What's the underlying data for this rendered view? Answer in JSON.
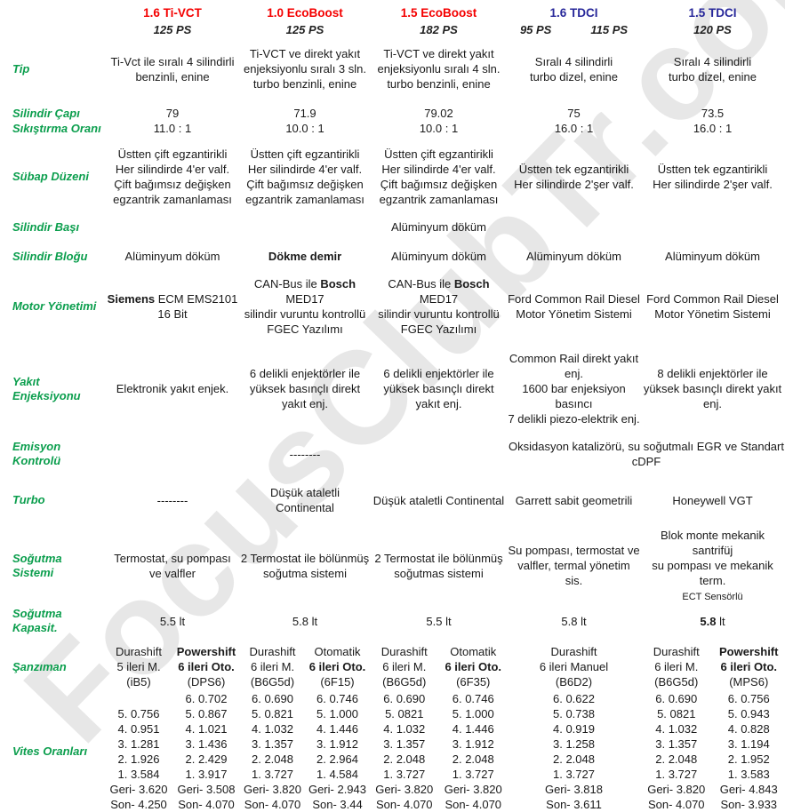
{
  "watermark": "FocusClubTr.com",
  "colors": {
    "petrol_red": "#f40000",
    "diesel_blue": "#28289a",
    "label_green": "#0b9e4d",
    "watermark_gray": "#d9d9d9"
  },
  "engines": [
    {
      "name": "1.6 Ti-VCT",
      "type": "petrol",
      "ps": [
        "125 PS"
      ]
    },
    {
      "name": "1.0 EcoBoost",
      "type": "petrol",
      "ps": [
        "125 PS"
      ]
    },
    {
      "name": "1.5 EcoBoost",
      "type": "petrol",
      "ps": [
        "182 PS"
      ]
    },
    {
      "name": "1.6 TDCI",
      "type": "diesel",
      "ps": [
        "95 PS",
        "115 PS"
      ]
    },
    {
      "name": "1.5 TDCI",
      "type": "diesel",
      "ps": [
        "120 PS"
      ]
    }
  ],
  "rows": [
    {
      "id": "tip",
      "label": "Tip",
      "cells": [
        {
          "c": 0,
          "lines": [
            "Ti-Vct ile sıralı 4 silindirli",
            "benzinli, enine"
          ]
        },
        {
          "c": 1,
          "lines": [
            "Ti-VCT ve direkt yakıt",
            "enjeksiyonlu sıralı 3 sln.",
            "turbo benzinli, enine"
          ]
        },
        {
          "c": 2,
          "lines": [
            "Ti-VCT ve direkt yakıt",
            "enjeksiyonlu sıralı 4 sln.",
            "turbo benzinli, enine"
          ]
        },
        {
          "c": 3,
          "lines": [
            "Sıralı 4 silindirli",
            "turbo dizel, enine"
          ]
        },
        {
          "c": 4,
          "lines": [
            "Sıralı 4 silindirli",
            "turbo dizel, enine"
          ]
        }
      ]
    },
    {
      "id": "bore",
      "label": "Silindir Çapı",
      "cells": [
        {
          "c": 0,
          "lines": [
            "79"
          ]
        },
        {
          "c": 1,
          "lines": [
            "71.9"
          ]
        },
        {
          "c": 2,
          "lines": [
            "79.02"
          ]
        },
        {
          "c": 3,
          "lines": [
            "75"
          ]
        },
        {
          "c": 4,
          "lines": [
            "73.5"
          ]
        }
      ]
    },
    {
      "id": "compression",
      "label": "Sıkıştırma Oranı",
      "cells": [
        {
          "c": 0,
          "lines": [
            "11.0 : 1"
          ]
        },
        {
          "c": 1,
          "lines": [
            "10.0 : 1"
          ]
        },
        {
          "c": 2,
          "lines": [
            "10.0 : 1"
          ]
        },
        {
          "c": 3,
          "lines": [
            "16.0 : 1"
          ]
        },
        {
          "c": 4,
          "lines": [
            "16.0 : 1"
          ]
        }
      ]
    },
    {
      "id": "valvetrain",
      "label": "Sübap Düzeni",
      "cells": [
        {
          "c": 0,
          "lines": [
            "Üstten çift egzantirikli",
            "Her silindirde 4'er valf.",
            "Çift bağımsız değişken",
            "egzantrik zamanlaması"
          ]
        },
        {
          "c": 1,
          "lines": [
            "Üstten çift egzantirikli",
            "Her silindirde 4'er valf.",
            "Çift bağımsız değişken",
            "egzantrik zamanlaması"
          ]
        },
        {
          "c": 2,
          "lines": [
            "Üstten çift egzantirikli",
            "Her silindirde 4'er valf.",
            "Çift bağımsız değişken",
            "egzantrik zamanlaması"
          ]
        },
        {
          "c": 3,
          "lines": [
            "Üstten tek egzantirikli",
            "Her silindirde 2'şer valf."
          ]
        },
        {
          "c": 4,
          "lines": [
            "Üstten tek egzantirikli",
            "Her silindirde 2'şer valf."
          ]
        }
      ]
    },
    {
      "id": "head",
      "label": "Silindir Başı",
      "cells": [
        {
          "c": 2,
          "lines": [
            "Alüminyum döküm"
          ]
        }
      ]
    },
    {
      "id": "block",
      "label": "Silindir Bloğu",
      "cells": [
        {
          "c": 0,
          "lines": [
            "Alüminyum döküm"
          ]
        },
        {
          "c": 1,
          "lines": [
            "**Dökme demir**"
          ]
        },
        {
          "c": 2,
          "lines": [
            "Alüminyum döküm"
          ]
        },
        {
          "c": 3,
          "lines": [
            "Alüminyum döküm"
          ]
        },
        {
          "c": 4,
          "lines": [
            "Alüminyum döküm"
          ]
        }
      ]
    },
    {
      "id": "ecu",
      "label": "Motor Yönetimi",
      "cells": [
        {
          "c": 0,
          "lines": [
            "**Siemens** ECM EMS2101",
            "16 Bit"
          ]
        },
        {
          "c": 1,
          "lines": [
            "CAN-Bus ile **Bosch** MED17",
            "silindir vuruntu kontrollü",
            "FGEC Yazılımı"
          ]
        },
        {
          "c": 2,
          "lines": [
            "CAN-Bus ile **Bosch** MED17",
            "silindir vuruntu kontrollü",
            "FGEC Yazılımı"
          ]
        },
        {
          "c": 3,
          "lines": [
            "Ford Common Rail Diesel",
            "Motor Yönetim Sistemi"
          ]
        },
        {
          "c": 4,
          "lines": [
            "Ford Common Rail Diesel",
            "Motor Yönetim Sistemi"
          ]
        }
      ]
    },
    {
      "id": "injection",
      "label": "Yakıt Enjeksiyonu",
      "cells": [
        {
          "c": 0,
          "lines": [
            "Elektronik yakıt enjek."
          ]
        },
        {
          "c": 1,
          "lines": [
            "6 delikli enjektörler ile",
            "yüksek basınçlı direkt yakıt enj."
          ]
        },
        {
          "c": 2,
          "lines": [
            "6 delikli enjektörler ile",
            "yüksek basınçlı direkt yakıt enj."
          ]
        },
        {
          "c": 3,
          "lines": [
            "Common Rail direkt yakıt enj.",
            "1600 bar enjeksiyon basıncı",
            "7 delikli piezo-elektrik enj."
          ]
        },
        {
          "c": 4,
          "lines": [
            "8 delikli enjektörler ile",
            "yüksek basınçlı direkt yakıt enj."
          ]
        }
      ]
    },
    {
      "id": "emission",
      "label": "Emisyon Kontrolü",
      "cells": [
        {
          "c": 1,
          "lines": [
            "--------"
          ]
        },
        {
          "c": 3,
          "span": 2,
          "lines": [
            "Oksidasyon katalizörü, su soğutmalı EGR ve Standart cDPF"
          ]
        }
      ]
    },
    {
      "id": "turbo",
      "label": "Turbo",
      "cells": [
        {
          "c": 0,
          "lines": [
            "--------"
          ]
        },
        {
          "c": 1,
          "lines": [
            "Düşük ataletli Continental"
          ]
        },
        {
          "c": 2,
          "lines": [
            "Düşük ataletli Continental"
          ]
        },
        {
          "c": 3,
          "lines": [
            "Garrett sabit geometrili"
          ]
        },
        {
          "c": 4,
          "lines": [
            "Honeywell VGT"
          ]
        }
      ]
    },
    {
      "id": "cooling",
      "label": "Soğutma Sistemi",
      "cells": [
        {
          "c": 0,
          "lines": [
            "Termostat, su pompası",
            "ve valfler"
          ]
        },
        {
          "c": 1,
          "lines": [
            "2 Termostat ile bölünmüş",
            "soğutma sistemi"
          ]
        },
        {
          "c": 2,
          "lines": [
            "2 Termostat ile bölünmüş",
            "soğutmas sistemi"
          ]
        },
        {
          "c": 3,
          "lines": [
            "Su pompası, termostat ve",
            "valfler, termal yönetim sis."
          ]
        },
        {
          "c": 4,
          "lines": [
            "Blok monte mekanik santrifüj",
            "su pompası ve mekanik term.",
            {
              "t": "ECT Sensörlü",
              "small": true
            }
          ]
        }
      ]
    },
    {
      "id": "capacity",
      "label": "Soğutma Kapasit.",
      "cells": [
        {
          "c": 0,
          "lines": [
            "5.5 lt"
          ]
        },
        {
          "c": 1,
          "lines": [
            "5.8 lt"
          ]
        },
        {
          "c": 2,
          "lines": [
            "5.5 lt"
          ]
        },
        {
          "c": 3,
          "lines": [
            "5.8 lt"
          ]
        },
        {
          "c": 4,
          "lines": [
            "**5.8** lt"
          ]
        }
      ]
    }
  ],
  "gearbox": {
    "id": "gearbox",
    "label": "Şanzıman",
    "cols": [
      [
        [
          "Durashift",
          "5 ileri M.",
          "(iB5)"
        ],
        [
          "**Powershift**",
          "**6 ileri Oto.**",
          "(DPS6)"
        ]
      ],
      [
        [
          "Durashift",
          "6 ileri M.",
          "(B6G5d)"
        ],
        [
          "Otomatik",
          "**6 ileri Oto.**",
          "(6F15)"
        ]
      ],
      [
        [
          "Durashift",
          "6 ileri M.",
          "(B6G5d)"
        ],
        [
          "Otomatik",
          "**6 ileri Oto.**",
          "(6F35)"
        ]
      ],
      [
        [
          "Durashift",
          "6 ileri Manuel",
          "(B6D2)"
        ]
      ],
      [
        [
          "Durashift",
          "6 ileri M.",
          "(B6G5d)"
        ],
        [
          "**Powershift**",
          "**6 ileri Oto.**",
          "(MPS6)"
        ]
      ]
    ]
  },
  "ratios": {
    "id": "ratios",
    "label": "Vites Oranları",
    "cols": [
      [
        [
          "5. 0.756",
          "4. 0.951",
          "3. 1.281",
          "2. 1.926",
          "1. 3.584",
          "Geri- 3.620",
          "Son- 4.250"
        ],
        [
          "6. 0.702",
          "5. 0.867",
          "4. 1.021",
          "3. 1.436",
          "2. 2.429",
          "1. 3.917",
          "Geri- 3.508",
          "Son- 4.070"
        ]
      ],
      [
        [
          "6. 0.690",
          "5. 0.821",
          "4. 1.032",
          "3. 1.357",
          "2. 2.048",
          "1. 3.727",
          "Geri- 3.820",
          "Son- 4.070"
        ],
        [
          "6. 0.746",
          "5. 1.000",
          "4. 1.446",
          "3. 1.912",
          "2. 2.964",
          "1. 4.584",
          "Geri- 2.943",
          "Son- 3.44"
        ]
      ],
      [
        [
          "6. 0.690",
          "5. 0821",
          "4. 1.032",
          "3. 1.357",
          "2. 2.048",
          "1. 3.727",
          "Geri- 3.820",
          "Son- 4.070"
        ],
        [
          "6. 0.746",
          "5. 1.000",
          "4. 1.446",
          "3. 1.912",
          "2. 2.048",
          "1. 3.727",
          "Geri- 3.820",
          "Son- 4.070"
        ]
      ],
      [
        [
          "6. 0.622",
          "5. 0.738",
          "4. 0.919",
          "3. 1.258",
          "2. 2.048",
          "1. 3.727",
          "Geri- 3.818",
          "Son- 3.611"
        ]
      ],
      [
        [
          "6. 0.690",
          "5. 0821",
          "4. 1.032",
          "3. 1.357",
          "2. 2.048",
          "1. 3.727",
          "Geri- 3.820",
          "Son- 4.070"
        ],
        [
          "6. 0.756",
          "5. 0.943",
          "4. 0.828",
          "3. 1.194",
          "2. 1.952",
          "1. 3.583",
          "Geri- 4.843",
          "Son- 3.933"
        ]
      ]
    ]
  }
}
